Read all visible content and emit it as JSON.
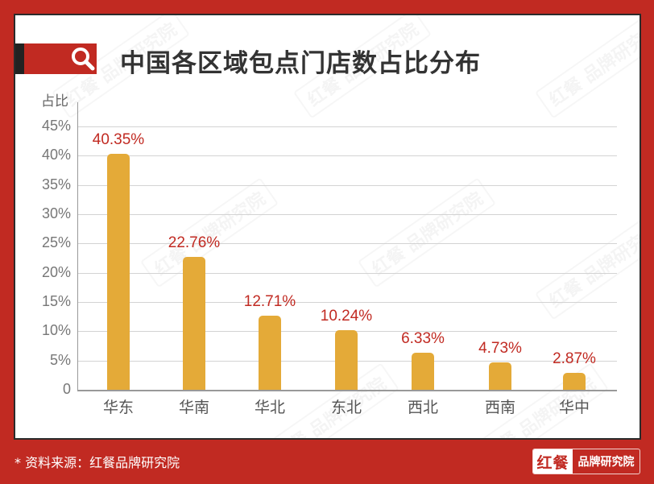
{
  "header": {
    "title": "中国各区域包点门店数占比分布",
    "icon": "search-icon"
  },
  "axis": {
    "y_label": "占比",
    "y_ticks": [
      "0",
      "5%",
      "10%",
      "15%",
      "20%",
      "25%",
      "30%",
      "35%",
      "40%",
      "45%"
    ]
  },
  "bars": [
    {
      "category": "华东",
      "value": 40.35,
      "label": "40.35%"
    },
    {
      "category": "华南",
      "value": 22.76,
      "label": "22.76%"
    },
    {
      "category": "华北",
      "value": 12.71,
      "label": "12.71%"
    },
    {
      "category": "东北",
      "value": 10.24,
      "label": "10.24%"
    },
    {
      "category": "西北",
      "value": 6.33,
      "label": "6.33%"
    },
    {
      "category": "西南",
      "value": 4.73,
      "label": "4.73%"
    },
    {
      "category": "华中",
      "value": 2.87,
      "label": "2.87%"
    }
  ],
  "footer": {
    "source": "* 资料来源：红餐品牌研究院",
    "brand_mark": "红餐",
    "brand_name": "品牌研究院"
  },
  "watermark": "红餐 品牌研究院",
  "colors": {
    "frame": "#c12a22",
    "bar": "#e4aa38",
    "value_label": "#c12a22",
    "title": "#333333"
  },
  "chart_data": {
    "type": "bar",
    "title": "中国各区域包点门店数占比分布",
    "categories": [
      "华东",
      "华南",
      "华北",
      "东北",
      "西北",
      "西南",
      "华中"
    ],
    "values": [
      40.35,
      22.76,
      12.71,
      10.24,
      6.33,
      4.73,
      2.87
    ],
    "value_labels": [
      "40.35%",
      "22.76%",
      "12.71%",
      "10.24%",
      "6.33%",
      "4.73%",
      "2.87%"
    ],
    "xlabel": "",
    "ylabel": "占比",
    "ylim": [
      0,
      45
    ],
    "yticks": [
      "0",
      "5%",
      "10%",
      "15%",
      "20%",
      "25%",
      "30%",
      "35%",
      "40%",
      "45%"
    ],
    "grid": true,
    "legend": null,
    "source": "* 资料来源：红餐品牌研究院"
  }
}
